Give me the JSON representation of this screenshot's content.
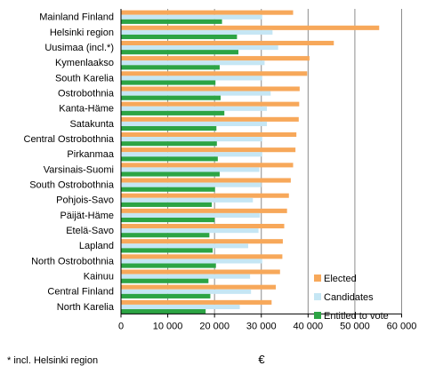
{
  "chart_data": {
    "type": "bar",
    "orientation": "horizontal",
    "categories": [
      "Mainland Finland",
      "Helsinki region",
      "Uusimaa (incl.*)",
      "Kymenlaakso",
      "South Karelia",
      "Ostrobothnia",
      "Kanta-Häme",
      "Satakunta",
      "Central Ostrobothnia",
      "Pirkanmaa",
      "Varsinais-Suomi",
      "South Ostrobothnia",
      "Pohjois-Savo",
      "Päijät-Häme",
      "Etelä-Savo",
      "Lapland",
      "North Ostrobothnia",
      "Kainuu",
      "Central Finland",
      "North Karelia"
    ],
    "series": [
      {
        "name": "Elected",
        "color": "#f7a85a",
        "values": [
          36800,
          55200,
          45500,
          40300,
          39800,
          38200,
          38100,
          38000,
          37500,
          37300,
          36800,
          36300,
          35900,
          35500,
          34900,
          34600,
          34500,
          34000,
          33100,
          32200
        ]
      },
      {
        "name": "Candidates",
        "color": "#c5e6f4",
        "values": [
          30200,
          32400,
          33600,
          30700,
          30200,
          32000,
          31200,
          31200,
          30200,
          30200,
          29600,
          30000,
          28200,
          29700,
          29400,
          27200,
          30200,
          27600,
          27800,
          25400
        ]
      },
      {
        "name": "Entitled to vote",
        "color": "#2ca444",
        "values": [
          21600,
          24800,
          25100,
          21100,
          20200,
          21300,
          22100,
          20400,
          20500,
          20700,
          21100,
          20100,
          19400,
          20000,
          18900,
          19600,
          20300,
          18700,
          19100,
          18100
        ]
      }
    ],
    "xlabel": "€",
    "xlim": [
      0,
      60000
    ],
    "xticks": [
      0,
      10000,
      20000,
      30000,
      40000,
      50000,
      60000
    ],
    "xtick_labels": [
      "0",
      "10 000",
      "20 000",
      "30 000",
      "40 000",
      "50 000",
      "60 000"
    ],
    "grid": "vertical",
    "legend_position": "bottom-right"
  },
  "footnote": "* incl. Helsinki region"
}
